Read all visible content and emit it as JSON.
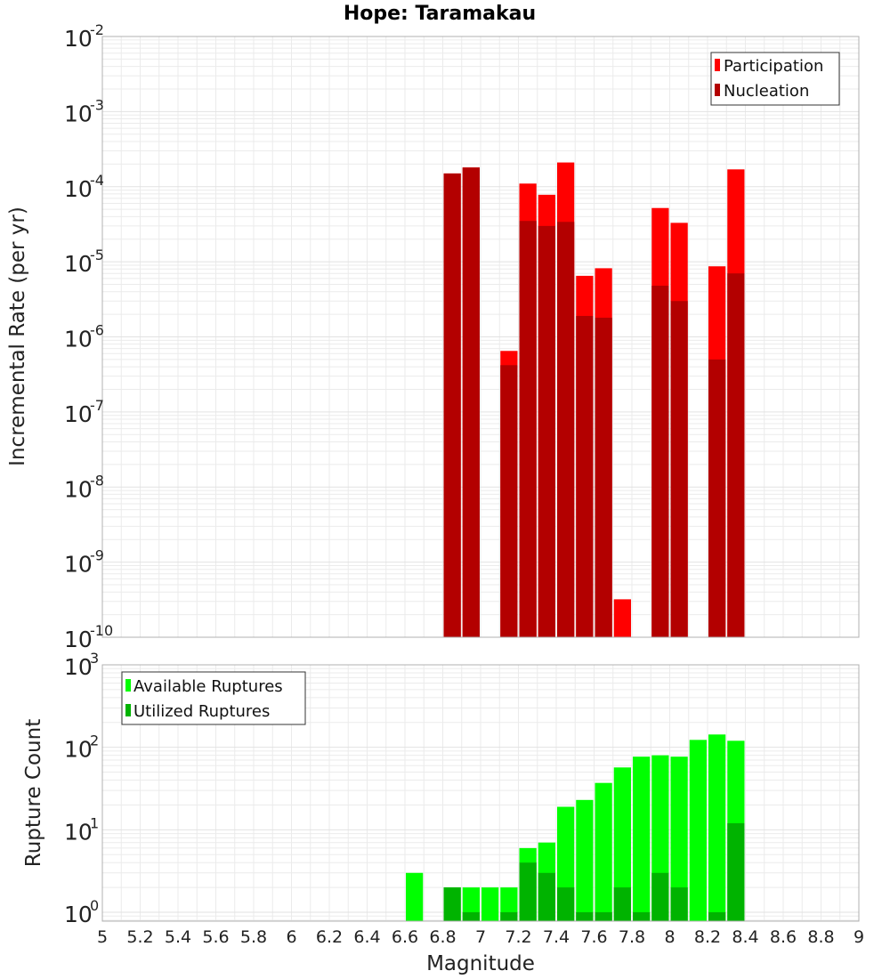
{
  "figure": {
    "title": "Hope: Taramakau",
    "xlabel": "Magnitude"
  },
  "colors": {
    "participation": "#ff0000",
    "nucleation": "#b30000",
    "available": "#00ff00",
    "utilized": "#00b300",
    "grid": "#ebebeb",
    "frame": "#b0b0b0"
  },
  "chart_data": [
    {
      "type": "bar",
      "ylabel": "Incremental Rate (per yr)",
      "yscale": "log",
      "xlim": [
        5,
        9
      ],
      "ylim": [
        1e-10,
        0.01
      ],
      "y_tick_exponents": [
        -10,
        -9,
        -8,
        -7,
        -6,
        -5,
        -4,
        -3,
        -2
      ],
      "legend_position": "top-right",
      "series": [
        {
          "name": "Participation",
          "x": [
            6.85,
            6.95,
            7.15,
            7.25,
            7.35,
            7.45,
            7.55,
            7.65,
            7.75,
            7.95,
            8.05,
            8.25,
            8.35
          ],
          "values": [
            0.00015,
            0.00018,
            6.5e-07,
            0.00011,
            7.8e-05,
            0.00021,
            6.5e-06,
            8.2e-06,
            3.2e-10,
            5.2e-05,
            3.3e-05,
            8.7e-06,
            0.00017
          ]
        },
        {
          "name": "Nucleation",
          "x": [
            6.85,
            6.95,
            7.15,
            7.25,
            7.35,
            7.45,
            7.55,
            7.65,
            7.95,
            8.05,
            8.25,
            8.35
          ],
          "values": [
            0.00015,
            0.00018,
            4.2e-07,
            3.5e-05,
            3e-05,
            3.4e-05,
            1.9e-06,
            1.8e-06,
            4.8e-06,
            3e-06,
            5e-07,
            7e-06
          ]
        }
      ]
    },
    {
      "type": "bar",
      "ylabel": "Rupture Count",
      "yscale": "log",
      "xlim": [
        5,
        9
      ],
      "ylim": [
        0.78,
        1000
      ],
      "y_tick_exponents": [
        0,
        1,
        2,
        3
      ],
      "legend_position": "top-left",
      "series": [
        {
          "name": "Available Ruptures",
          "x": [
            6.65,
            6.85,
            6.95,
            7.05,
            7.15,
            7.25,
            7.35,
            7.45,
            7.55,
            7.65,
            7.75,
            7.85,
            7.95,
            8.05,
            8.15,
            8.25,
            8.35
          ],
          "values": [
            3,
            2,
            2,
            2,
            2,
            6,
            7,
            19,
            23,
            37,
            57,
            77,
            80,
            77,
            123,
            143,
            120
          ]
        },
        {
          "name": "Utilized Ruptures",
          "x": [
            6.85,
            6.95,
            7.15,
            7.25,
            7.35,
            7.45,
            7.55,
            7.65,
            7.75,
            7.85,
            7.95,
            8.05,
            8.25,
            8.35
          ],
          "values": [
            2,
            1,
            1,
            4,
            3,
            2,
            1,
            1,
            2,
            1,
            3,
            2,
            1,
            12
          ]
        }
      ]
    }
  ],
  "x_ticks": [
    "5",
    "5.2",
    "5.4",
    "5.6",
    "5.8",
    "6",
    "6.2",
    "6.4",
    "6.6",
    "6.8",
    "7",
    "7.2",
    "7.4",
    "7.6",
    "7.8",
    "8",
    "8.2",
    "8.4",
    "8.6",
    "8.8",
    "9"
  ]
}
